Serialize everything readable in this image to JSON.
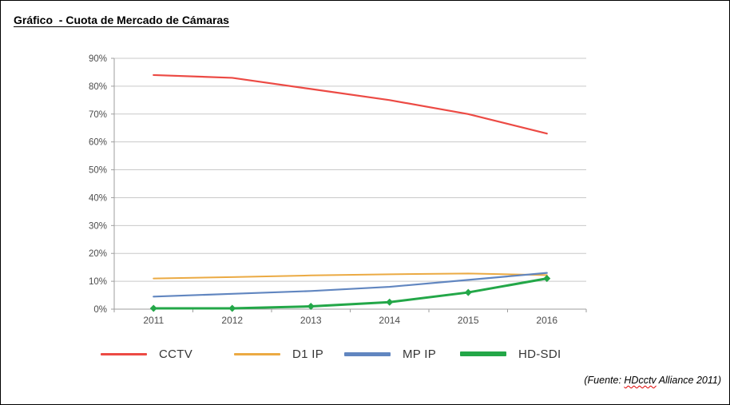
{
  "page": {
    "title": "Gráfico  - Cuota de Mercado de Cámaras",
    "source": {
      "prefix": "(Fuente: ",
      "highlighted_word": "HDcctv",
      "suffix": " Alliance 2011)"
    }
  },
  "chart_data": {
    "type": "line",
    "title": "Cuota de Mercado de Cámaras",
    "categories": [
      "2011",
      "2012",
      "2013",
      "2014",
      "2015",
      "2016"
    ],
    "series": [
      {
        "name": "CCTV",
        "color": "#EC4A44",
        "line_width": 2.2,
        "marker": "none",
        "values": [
          84,
          83,
          79,
          75,
          70,
          63
        ]
      },
      {
        "name": "D1 IP",
        "color": "#EBAA43",
        "line_width": 2,
        "marker": "none",
        "values": [
          11,
          11.5,
          12.1,
          12.5,
          12.8,
          12.2
        ]
      },
      {
        "name": "MP IP",
        "color": "#6186C0",
        "line_width": 2.2,
        "marker": "none",
        "values": [
          4.5,
          5.5,
          6.5,
          8,
          10.5,
          13
        ]
      },
      {
        "name": "HD-SDI",
        "color": "#23A748",
        "line_width": 3,
        "marker": "diamond",
        "values": [
          0.3,
          0.3,
          1,
          2.5,
          6,
          11
        ]
      }
    ],
    "xlabel": "",
    "ylabel": "",
    "ylim": [
      0,
      90
    ],
    "y_tick_step": 10,
    "y_tick_suffix": "%",
    "grid": true,
    "legend_position": "bottom"
  }
}
